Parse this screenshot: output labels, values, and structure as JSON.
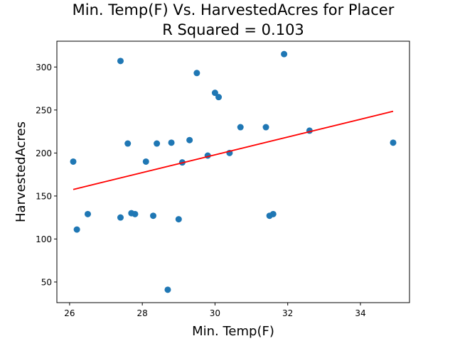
{
  "chart_data": {
    "type": "scatter",
    "title_line1": "Min. Temp(F) Vs. HarvestedAcres for Placer",
    "title_line2": "R Squared =  0.103",
    "xlabel": "Min. Temp(F)",
    "ylabel": "HarvestedAcres",
    "xlim": [
      25.65,
      35.35
    ],
    "ylim": [
      26,
      330
    ],
    "xticks": [
      26,
      28,
      30,
      32,
      34
    ],
    "yticks": [
      50,
      100,
      150,
      200,
      250,
      300
    ],
    "grid": false,
    "colors": {
      "points": "#1f77b4",
      "fit_line": "#ff0000",
      "axes": "#000000"
    },
    "series": [
      {
        "x": [
          26.1,
          26.2,
          26.5,
          27.4,
          27.4,
          27.6,
          27.7,
          27.8,
          28.1,
          28.3,
          28.4,
          28.7,
          28.8,
          29.0,
          29.1,
          29.3,
          29.5,
          29.8,
          30.0,
          30.1,
          30.4,
          30.7,
          31.4,
          31.5,
          31.6,
          31.9,
          32.6,
          34.9
        ],
        "y": [
          190,
          111,
          129,
          307,
          125,
          211,
          130,
          129,
          190,
          127,
          211,
          41,
          212,
          123,
          189,
          215,
          293,
          197,
          270,
          265,
          200,
          230,
          230,
          127,
          129,
          315,
          226,
          212
        ]
      }
    ],
    "fit_line": {
      "x": [
        26.1,
        34.9
      ],
      "y": [
        157.6,
        248.5
      ]
    }
  }
}
